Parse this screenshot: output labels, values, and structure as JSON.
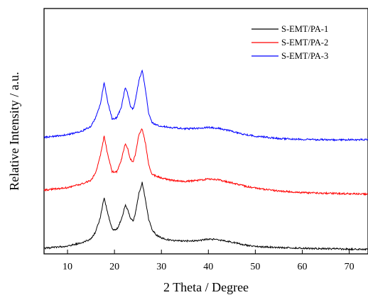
{
  "chart_data": {
    "type": "line",
    "xlabel": "2 Theta / Degree",
    "ylabel": "Relative Intensity / a.u.",
    "xlim": [
      5,
      74
    ],
    "ylim": [
      0,
      100
    ],
    "x_ticks": [
      10,
      20,
      30,
      40,
      50,
      60,
      70
    ],
    "y_ticks_shown": false,
    "grid": false,
    "legend_position": "top-right",
    "series": [
      {
        "name": "S-EMT/PA-1",
        "color": "#000000",
        "x": [
          5,
          10,
          13,
          15,
          16,
          17,
          17.8,
          18.5,
          19.5,
          20.5,
          21.5,
          22.3,
          22.8,
          23.4,
          24,
          24.5,
          25.2,
          25.9,
          26.6,
          27.3,
          28,
          29,
          30,
          32,
          35,
          38,
          40,
          42,
          45,
          48,
          50,
          55,
          60,
          65,
          70,
          74
        ],
        "y": [
          2.3,
          3.2,
          4.5,
          6.0,
          9.0,
          15.0,
          23.0,
          17.0,
          10.0,
          10.0,
          14.0,
          20.0,
          18.0,
          14.5,
          13.5,
          17.0,
          24.5,
          29.0,
          22.0,
          14.0,
          10.0,
          7.5,
          6.5,
          5.5,
          5.2,
          5.5,
          6.0,
          5.8,
          4.8,
          3.6,
          3.0,
          2.6,
          2.3,
          2.1,
          1.9,
          1.8
        ]
      },
      {
        "name": "S-EMT/PA-2",
        "color": "#ff0000",
        "x": [
          5,
          10,
          13,
          15,
          16,
          17,
          17.8,
          18.5,
          19.5,
          20.5,
          21.5,
          22.3,
          22.8,
          23.4,
          24,
          24.5,
          25.2,
          25.9,
          26.6,
          27.3,
          28,
          29,
          30,
          32,
          35,
          38,
          40,
          42,
          45,
          48,
          50,
          55,
          60,
          65,
          70,
          74
        ],
        "y": [
          26.0,
          27.0,
          28.5,
          30.0,
          33.0,
          40.0,
          48.0,
          41.0,
          33.5,
          33.5,
          38.5,
          45.0,
          43.0,
          38.5,
          37.5,
          41.0,
          48.5,
          51.0,
          45.0,
          36.0,
          32.5,
          31.5,
          31.0,
          30.0,
          29.5,
          30.0,
          30.5,
          30.2,
          29.0,
          27.5,
          26.8,
          25.6,
          25.0,
          24.7,
          24.5,
          24.4
        ]
      },
      {
        "name": "S-EMT/PA-3",
        "color": "#0000ff",
        "x": [
          5,
          10,
          13,
          15,
          16,
          17,
          17.8,
          18.5,
          19.5,
          20.5,
          21.5,
          22.3,
          22.8,
          23.4,
          24,
          24.5,
          25.2,
          25.9,
          26.6,
          27.3,
          28,
          29,
          30,
          32,
          35,
          38,
          40,
          42,
          45,
          48,
          50,
          55,
          60,
          65,
          70,
          74
        ],
        "y": [
          47.5,
          48.5,
          50.0,
          52.0,
          55.5,
          61.0,
          70.0,
          62.5,
          55.0,
          55.5,
          60.0,
          68.0,
          65.5,
          60.0,
          59.0,
          63.0,
          70.5,
          75.0,
          67.0,
          57.0,
          53.5,
          52.5,
          52.0,
          51.5,
          51.0,
          51.2,
          51.6,
          51.2,
          50.0,
          48.5,
          48.0,
          47.0,
          46.7,
          46.5,
          46.5,
          46.5
        ]
      }
    ]
  }
}
